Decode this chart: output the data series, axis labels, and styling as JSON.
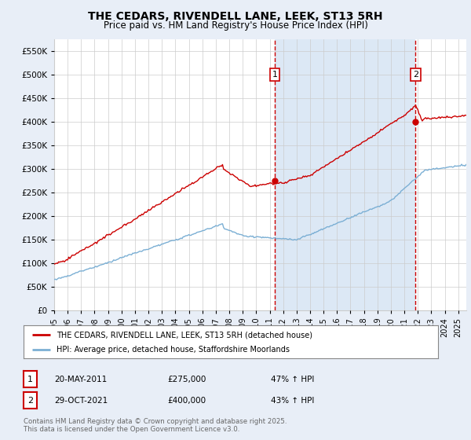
{
  "title": "THE CEDARS, RIVENDELL LANE, LEEK, ST13 5RH",
  "subtitle": "Price paid vs. HM Land Registry's House Price Index (HPI)",
  "title_fontsize": 10,
  "subtitle_fontsize": 8.5,
  "bg_color": "#e8eef7",
  "plot_bg_color": "#ffffff",
  "shade_color": "#dce8f5",
  "red_color": "#cc0000",
  "blue_color": "#7bafd4",
  "vline_color": "#cc0000",
  "grid_color": "#cccccc",
  "ylim": [
    0,
    575000
  ],
  "yticks": [
    0,
    50000,
    100000,
    150000,
    200000,
    250000,
    300000,
    350000,
    400000,
    450000,
    500000,
    550000
  ],
  "purchase1_date": "20-MAY-2011",
  "purchase1_price": 275000,
  "purchase1_pct": "47%",
  "purchase2_date": "29-OCT-2021",
  "purchase2_price": 400000,
  "purchase2_pct": "43%",
  "legend_label_red": "THE CEDARS, RIVENDELL LANE, LEEK, ST13 5RH (detached house)",
  "legend_label_blue": "HPI: Average price, detached house, Staffordshire Moorlands",
  "footer": "Contains HM Land Registry data © Crown copyright and database right 2025.\nThis data is licensed under the Open Government Licence v3.0.",
  "xstart_year": 1995,
  "xend_year": 2025
}
